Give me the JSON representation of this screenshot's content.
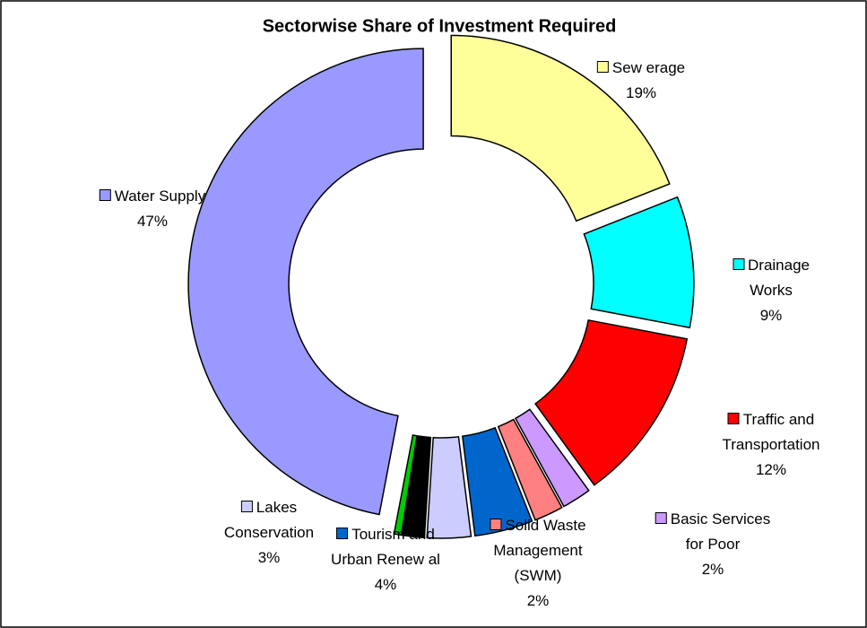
{
  "chart_data": {
    "type": "donut",
    "title": "Sectorwise Share of Investment Required",
    "categories": [
      "Sew erage",
      "Drainage Works",
      "Traffic and\nTransportation",
      "Basic Services\nfor Poor",
      "Solid Waste\nManagement\n(SWM)",
      "Tourism and\nUrban Renew al",
      "Lakes\nConservation",
      null,
      null,
      "Water Supply"
    ],
    "values": [
      19,
      9,
      12,
      2,
      2,
      4,
      3,
      1.5,
      0.5,
      47
    ],
    "value_labels": [
      "19%",
      "9%",
      "12%",
      "2%",
      "2%",
      "4%",
      "3%",
      null,
      null,
      "47%"
    ],
    "colors": [
      "#ffff99",
      "#00ffff",
      "#ff0000",
      "#cc99ff",
      "#ff8080",
      "#0066cc",
      "#ccccff",
      "#000000",
      "#00cc00",
      "#9999ff"
    ]
  }
}
